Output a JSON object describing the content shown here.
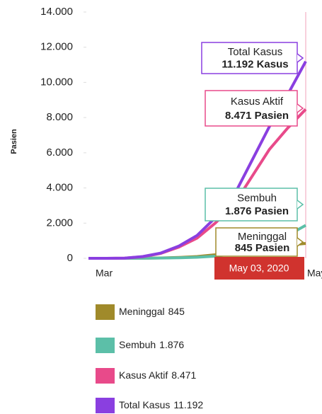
{
  "chart_data": {
    "type": "line",
    "y_label": "Pasien",
    "categories": [
      "Mar",
      null,
      null,
      null,
      null,
      null,
      null,
      null,
      null,
      null,
      null,
      null,
      "May"
    ],
    "series": [
      {
        "name": "Meninggal",
        "color": "#a08a2a",
        "legend_label": "845",
        "values": [
          0,
          0,
          0,
          5,
          20,
          50,
          100,
          200,
          350,
          500,
          650,
          750,
          845
        ]
      },
      {
        "name": "Sembuh",
        "color": "#5cbfa8",
        "legend_label": "1.876",
        "values": [
          0,
          0,
          0,
          5,
          15,
          30,
          60,
          120,
          250,
          500,
          900,
          1300,
          1876
        ]
      },
      {
        "name": "Kasus Aktif",
        "color": "#e84a8a",
        "legend_label": "8.471",
        "values": [
          0,
          0,
          10,
          90,
          280,
          640,
          1150,
          2000,
          3000,
          4600,
          6200,
          7400,
          8471
        ]
      },
      {
        "name": "Total Kasus",
        "color": "#8a3fe0",
        "legend_label": "11.192",
        "values": [
          0,
          0,
          10,
          100,
          300,
          700,
          1300,
          2300,
          3500,
          5500,
          7500,
          9300,
          11192
        ]
      }
    ],
    "ylim": [
      0,
      14000
    ],
    "yticks": [
      0,
      {
        "value": 2000,
        "label": "2.000"
      },
      {
        "value": 4000,
        "label": "4.000"
      },
      {
        "value": 6000,
        "label": "6.000"
      },
      {
        "value": 8000,
        "label": "8.000"
      },
      {
        "value": 10000,
        "label": "10.000"
      },
      {
        "value": 12000,
        "label": "12.000"
      },
      {
        "value": 14000,
        "label": "14.000"
      }
    ],
    "tooltip": {
      "date": "May 03, 2020",
      "items": [
        {
          "title": "Total Kasus",
          "value": "11.192 Kasus"
        },
        {
          "title": "Kasus Aktif",
          "value": "8.471 Pasien"
        },
        {
          "title": "Sembuh",
          "value": "1.876 Pasien"
        },
        {
          "title": "Meninggal",
          "value": "845 Pasien"
        }
      ]
    }
  }
}
